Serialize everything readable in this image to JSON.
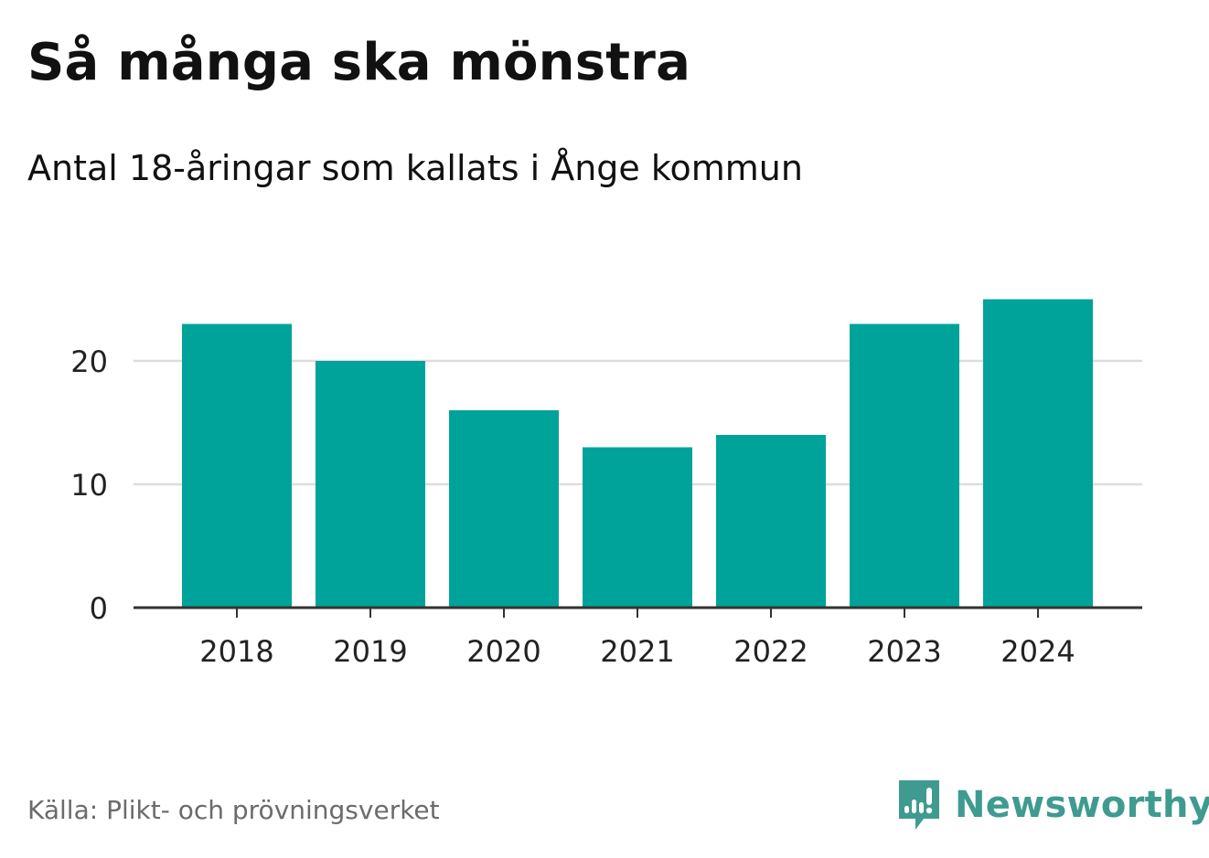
{
  "colors": {
    "bar": "#00a39a",
    "brand": "#3f9b8f",
    "grid": "#dddddd",
    "axis": "#333333"
  },
  "chart_data": {
    "type": "bar",
    "title": "Så många ska mönstra",
    "subtitle": "Antal 18-åringar som kallats i Ånge kommun",
    "categories": [
      "2018",
      "2019",
      "2020",
      "2021",
      "2022",
      "2023",
      "2024"
    ],
    "values": [
      23,
      20,
      16,
      13,
      14,
      23,
      25
    ],
    "yticks": [
      0,
      10,
      20
    ],
    "ylim": [
      0,
      25
    ],
    "xlabel": "",
    "ylabel": "",
    "grid": true
  },
  "footer": {
    "source": "Källa: Plikt- och prövningsverket",
    "brand_name": "Newsworthy",
    "brand_icon": "newsworthy-logo-icon"
  }
}
